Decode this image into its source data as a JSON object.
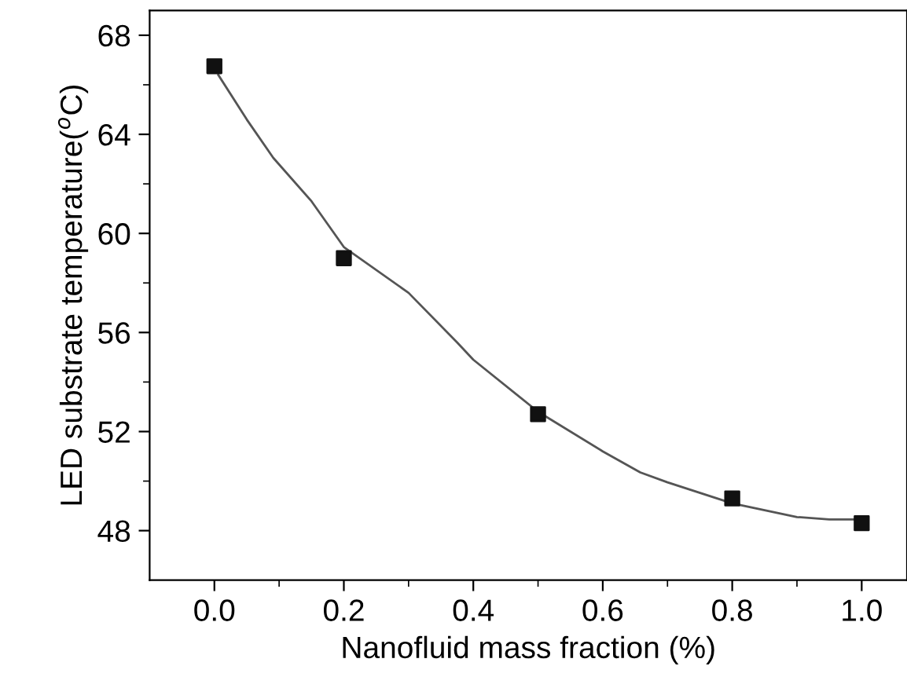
{
  "chart_data": {
    "type": "scatter",
    "xlabel": "Nanofluid mass fraction (%)",
    "ylabel": "LED substrate temperature($^{o}$C)",
    "xlim": [
      -0.1,
      1.07
    ],
    "ylim": [
      46,
      69
    ],
    "xticks": [
      {
        "value": 0.0,
        "label": "0.0"
      },
      {
        "value": 0.1,
        "label": null
      },
      {
        "value": 0.2,
        "label": "0.2"
      },
      {
        "value": 0.3,
        "label": null
      },
      {
        "value": 0.4,
        "label": "0.4"
      },
      {
        "value": 0.5,
        "label": null
      },
      {
        "value": 0.6,
        "label": "0.6"
      },
      {
        "value": 0.7,
        "label": null
      },
      {
        "value": 0.8,
        "label": "0.8"
      },
      {
        "value": 0.9,
        "label": null
      },
      {
        "value": 1.0,
        "label": "1.0"
      }
    ],
    "yticks": [
      48,
      {
        "value": 50,
        "label": null
      },
      52,
      {
        "value": 54,
        "label": null
      },
      56,
      {
        "value": 58,
        "label": null
      },
      60,
      {
        "value": 62,
        "label": null
      },
      64,
      {
        "value": 66,
        "label": null
      },
      68
    ],
    "grid": false,
    "marker": "square",
    "series": [
      {
        "color": "#111111",
        "x": [
          0.0,
          0.2,
          0.5,
          0.8,
          1.0
        ],
        "values": [
          66.75,
          59.0,
          52.7,
          49.3,
          48.3
        ]
      },
      {
        "type": "line",
        "color": "#555555",
        "line_style": "solid",
        "marker": "none",
        "x": [
          0.006,
          0.05,
          0.091,
          0.15,
          0.2,
          0.3,
          0.375,
          0.4,
          0.5,
          0.6,
          0.658,
          0.7,
          0.8,
          0.9,
          0.95,
          1.0
        ],
        "values": [
          66.4,
          64.6,
          63.05,
          61.3,
          59.45,
          57.6,
          55.6,
          54.9,
          52.8,
          51.2,
          50.35,
          49.95,
          49.1,
          48.55,
          48.45,
          48.45
        ]
      }
    ]
  }
}
